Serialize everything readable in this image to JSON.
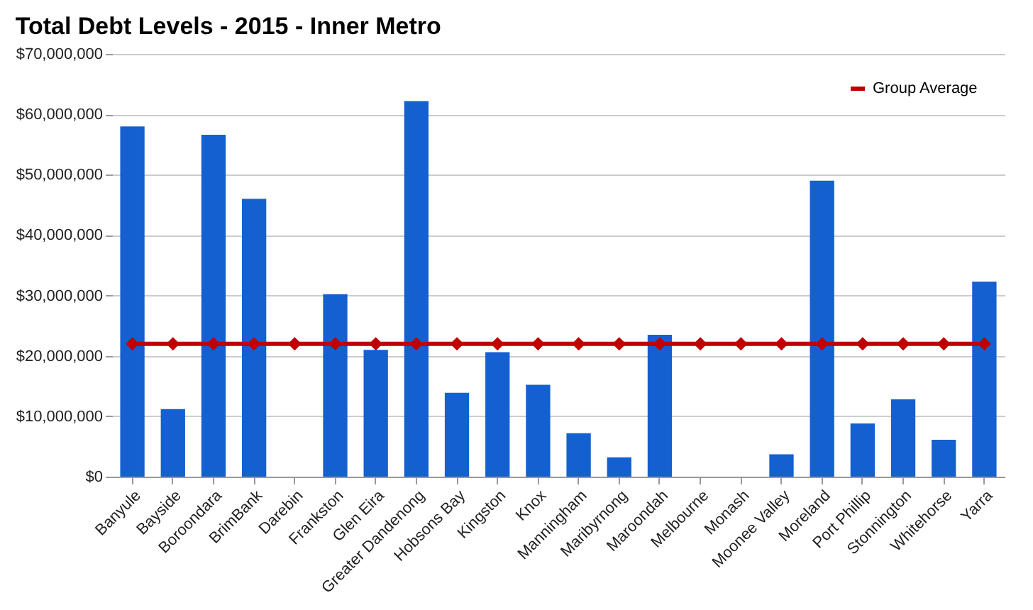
{
  "chart_data": {
    "type": "bar",
    "title": "Total Debt Levels - 2015 - Inner Metro",
    "categories": [
      "Banyule",
      "Bayside",
      "Boroondara",
      "BrimBank",
      "Darebin",
      "Frankston",
      "Glen Eira",
      "Greater Dandenong",
      "Hobsons Bay",
      "Kingston",
      "Knox",
      "Manningham",
      "Maribyrnong",
      "Maroondah",
      "Melbourne",
      "Monash",
      "Moonee Valley",
      "Moreland",
      "Port Phillip",
      "Stonnington",
      "Whitehorse",
      "Yarra"
    ],
    "series": [
      {
        "type": "bar",
        "color": "#1560d0",
        "values": [
          58000000,
          11200000,
          56600000,
          46000000,
          0,
          30200000,
          21000000,
          62200000,
          13900000,
          20600000,
          15200000,
          7200000,
          3200000,
          23500000,
          0,
          0,
          3700000,
          49000000,
          8800000,
          12800000,
          6100000,
          32300000
        ]
      },
      {
        "type": "line",
        "name": "Group Average",
        "color": "#c00000",
        "marker": "diamond",
        "values": [
          22000000,
          22000000,
          22000000,
          22000000,
          22000000,
          22000000,
          22000000,
          22000000,
          22000000,
          22000000,
          22000000,
          22000000,
          22000000,
          22000000,
          22000000,
          22000000,
          22000000,
          22000000,
          22000000,
          22000000,
          22000000,
          22000000
        ]
      }
    ],
    "ylim": [
      0,
      70000000
    ],
    "yticks": [
      {
        "value": 0,
        "label": "$0"
      },
      {
        "value": 10000000,
        "label": "$10,000,000"
      },
      {
        "value": 20000000,
        "label": "$20,000,000"
      },
      {
        "value": 30000000,
        "label": "$30,000,000"
      },
      {
        "value": 40000000,
        "label": "$40,000,000"
      },
      {
        "value": 50000000,
        "label": "$50,000,000"
      },
      {
        "value": 60000000,
        "label": "$60,000,000"
      },
      {
        "value": 70000000,
        "label": "$70,000,000"
      }
    ],
    "grid": "y",
    "legend": "top right"
  }
}
